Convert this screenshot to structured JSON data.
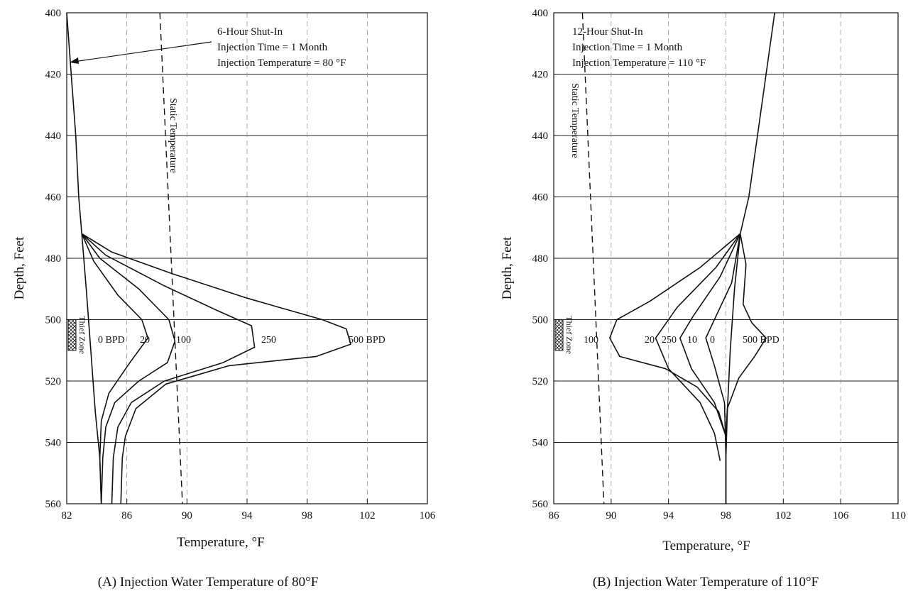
{
  "chart_data": [
    {
      "type": "line",
      "caption": "(A) Injection Water Temperature of 80°F",
      "xlabel": "Temperature, °F",
      "ylabel": "Depth, Feet",
      "xlim": [
        82,
        106
      ],
      "ylim": [
        400,
        560
      ],
      "y_inverted": true,
      "x_ticks": [
        82,
        86,
        90,
        94,
        98,
        102,
        106
      ],
      "y_ticks": [
        400,
        420,
        440,
        460,
        480,
        500,
        520,
        540,
        560
      ],
      "grid": true,
      "annotation_lines": [
        "6-Hour Shut-In",
        "Injection Time = 1 Month",
        "Injection Temperature = 80 °F"
      ],
      "thief_zone": {
        "label": "Thief Zone",
        "top": 500,
        "bottom": 510
      },
      "series": [
        {
          "style": "dashed",
          "label": "Static Temperature",
          "points": [
            [
              88.2,
              400
            ],
            [
              89.7,
              560
            ]
          ]
        },
        {
          "style": "solid",
          "label": "0 BPD",
          "points": [
            [
              82.0,
              400
            ],
            [
              82.3,
              420
            ],
            [
              82.6,
              440
            ],
            [
              82.8,
              460
            ],
            [
              83.0,
              472
            ],
            [
              83.3,
              490
            ],
            [
              83.6,
              510
            ],
            [
              83.9,
              530
            ],
            [
              84.2,
              545
            ],
            [
              84.3,
              560
            ]
          ]
        },
        {
          "style": "solid",
          "label": "20",
          "points": [
            [
              83.0,
              472
            ],
            [
              83.8,
              481
            ],
            [
              85.4,
              492
            ],
            [
              87.0,
              500
            ],
            [
              87.4,
              506
            ],
            [
              86.2,
              514
            ],
            [
              84.8,
              524
            ],
            [
              84.3,
              533
            ],
            [
              84.2,
              545
            ],
            [
              84.3,
              560
            ]
          ]
        },
        {
          "style": "solid",
          "label": "100",
          "points": [
            [
              83.0,
              472
            ],
            [
              84.2,
              480
            ],
            [
              86.8,
              490
            ],
            [
              88.8,
              500
            ],
            [
              89.2,
              507
            ],
            [
              88.7,
              514
            ],
            [
              86.8,
              520
            ],
            [
              85.2,
              527
            ],
            [
              84.6,
              535
            ],
            [
              84.4,
              545
            ],
            [
              84.3,
              560
            ]
          ]
        },
        {
          "style": "solid",
          "label": "250",
          "points": [
            [
              83.0,
              472
            ],
            [
              84.6,
              479
            ],
            [
              88.5,
              489
            ],
            [
              92.0,
              497
            ],
            [
              94.3,
              502
            ],
            [
              94.5,
              509
            ],
            [
              92.4,
              514
            ],
            [
              88.5,
              520
            ],
            [
              86.3,
              527
            ],
            [
              85.4,
              535
            ],
            [
              85.1,
              545
            ],
            [
              85.0,
              560
            ]
          ]
        },
        {
          "style": "solid",
          "label": "500 BPD",
          "points": [
            [
              83.0,
              472
            ],
            [
              85.0,
              478
            ],
            [
              89.0,
              485
            ],
            [
              94.0,
              493
            ],
            [
              99.0,
              500
            ],
            [
              100.6,
              503
            ],
            [
              100.9,
              508
            ],
            [
              98.6,
              512
            ],
            [
              92.8,
              515
            ],
            [
              88.6,
              521
            ],
            [
              86.6,
              529
            ],
            [
              85.9,
              538
            ],
            [
              85.7,
              545
            ],
            [
              85.6,
              560
            ]
          ]
        }
      ],
      "curve_labels": [
        "0 BPD",
        "20",
        "100",
        "250",
        "500 BPD"
      ]
    },
    {
      "type": "line",
      "caption": "(B) Injection Water Temperature of 110°F",
      "xlabel": "Temperature, °F",
      "ylabel": "Depth, Feet",
      "xlim": [
        86,
        110
      ],
      "ylim": [
        400,
        560
      ],
      "y_inverted": true,
      "x_ticks": [
        86,
        90,
        94,
        98,
        102,
        106,
        110
      ],
      "y_ticks": [
        400,
        420,
        440,
        460,
        480,
        500,
        520,
        540,
        560
      ],
      "grid": true,
      "annotation_lines": [
        "12-Hour Shut-In",
        "Injection Time = 1 Month",
        "Injection Temperature = 110 °F"
      ],
      "thief_zone": {
        "label": "Thief Zone",
        "top": 500,
        "bottom": 510
      },
      "series": [
        {
          "style": "dashed",
          "label": "Static Temperature",
          "points": [
            [
              88.0,
              400
            ],
            [
              89.5,
              560
            ]
          ]
        },
        {
          "style": "solid",
          "label": "0",
          "points": [
            [
              101.4,
              400
            ],
            [
              100.8,
              420
            ],
            [
              100.2,
              440
            ],
            [
              99.6,
              460
            ],
            [
              99.0,
              472
            ],
            [
              98.6,
              490
            ],
            [
              98.3,
              510
            ],
            [
              98.1,
              530
            ],
            [
              98.0,
              545
            ],
            [
              98.0,
              560
            ]
          ]
        },
        {
          "style": "solid",
          "label": "10",
          "points": [
            [
              99.0,
              472
            ],
            [
              98.4,
              488
            ],
            [
              97.2,
              500
            ],
            [
              96.6,
              506
            ],
            [
              97.2,
              515
            ],
            [
              97.9,
              527
            ],
            [
              98.0,
              545
            ],
            [
              98.0,
              560
            ]
          ]
        },
        {
          "style": "solid",
          "label": "250",
          "points": [
            [
              99.0,
              472
            ],
            [
              97.6,
              486
            ],
            [
              95.7,
              499
            ],
            [
              94.8,
              506
            ],
            [
              95.6,
              516
            ],
            [
              97.2,
              527
            ],
            [
              98.0,
              538
            ]
          ]
        },
        {
          "style": "solid",
          "label": "20",
          "points": [
            [
              99.0,
              472
            ],
            [
              97.3,
              483
            ],
            [
              94.6,
              496
            ],
            [
              93.1,
              506
            ],
            [
              94.0,
              516
            ],
            [
              96.2,
              527
            ],
            [
              97.2,
              537
            ],
            [
              97.6,
              546
            ]
          ]
        },
        {
          "style": "solid",
          "label": "100",
          "points": [
            [
              99.0,
              472
            ],
            [
              96.2,
              483
            ],
            [
              92.7,
              494
            ],
            [
              90.4,
              500
            ],
            [
              89.9,
              506
            ],
            [
              90.6,
              512
            ],
            [
              93.8,
              516
            ],
            [
              96.0,
              522
            ],
            [
              97.5,
              530
            ],
            [
              98.0,
              538
            ]
          ]
        },
        {
          "style": "solid",
          "label": "500 BPD",
          "points": [
            [
              99.0,
              472
            ],
            [
              99.4,
              482
            ],
            [
              99.2,
              495
            ],
            [
              99.8,
              501
            ],
            [
              100.8,
              506
            ],
            [
              100.0,
              512
            ],
            [
              98.9,
              519
            ],
            [
              98.1,
              529
            ],
            [
              98.0,
              538
            ]
          ]
        }
      ],
      "curve_labels": [
        "100",
        "20",
        "250",
        "10",
        "0",
        "500 BPD"
      ]
    }
  ]
}
